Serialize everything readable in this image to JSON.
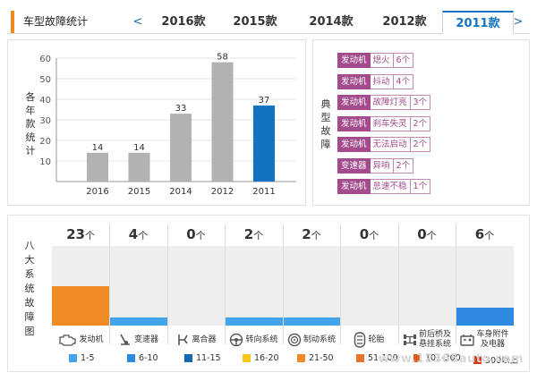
{
  "header": {
    "title": "车型故障统计",
    "prev_arrow": "<",
    "next_arrow": ">",
    "tabs": [
      {
        "label": "2016款",
        "active": false
      },
      {
        "label": "2015款",
        "active": false
      },
      {
        "label": "2014款",
        "active": false
      },
      {
        "label": "2012款",
        "active": false
      },
      {
        "label": "2011款",
        "active": true
      }
    ]
  },
  "chart_panel": {
    "side_label": "各年款统计"
  },
  "chart_data": {
    "type": "bar",
    "categories": [
      "2016",
      "2015",
      "2014",
      "2012",
      "2011"
    ],
    "values": [
      14,
      14,
      33,
      58,
      37
    ],
    "highlight_index": 4,
    "bar_color": "#b2b2b2",
    "highlight_color": "#1273c2",
    "ylim": [
      0,
      60
    ],
    "yticks": [
      10,
      20,
      30,
      40,
      50,
      60
    ],
    "grid": true,
    "title": "",
    "xlabel": "",
    "ylabel": ""
  },
  "faults_panel": {
    "side_label": "典型故障",
    "items": [
      {
        "category": "发动机",
        "desc": "熄火",
        "count": "6个"
      },
      {
        "category": "发动机",
        "desc": "抖动",
        "count": "4个"
      },
      {
        "category": "发动机",
        "desc": "故障灯亮",
        "count": "3个"
      },
      {
        "category": "发动机",
        "desc": "刹车失灵",
        "count": "2个"
      },
      {
        "category": "发动机",
        "desc": "无法启动",
        "count": "2个"
      },
      {
        "category": "变速器",
        "desc": "异响",
        "count": "2个"
      },
      {
        "category": "发动机",
        "desc": "怠速不稳",
        "count": "1个"
      }
    ]
  },
  "systems_panel": {
    "side_label": "八大系统故障图",
    "unit": "个",
    "systems": [
      {
        "name": "发动机",
        "count": 23,
        "icon": "engine-icon",
        "level": 0.49,
        "color": "#f08a24"
      },
      {
        "name": "变速器",
        "count": 4,
        "icon": "gearbox-icon",
        "level": 0.1,
        "color": "#43a4ec"
      },
      {
        "name": "离合器",
        "count": 0,
        "icon": "clutch-icon",
        "level": 0,
        "color": "#43a4ec"
      },
      {
        "name": "转向系统",
        "count": 2,
        "icon": "steering-icon",
        "level": 0.1,
        "color": "#43a4ec"
      },
      {
        "name": "制动系统",
        "count": 2,
        "icon": "brake-icon",
        "level": 0.1,
        "color": "#43a4ec"
      },
      {
        "name": "轮胎",
        "count": 0,
        "icon": "tire-icon",
        "level": 0,
        "color": "#43a4ec"
      },
      {
        "name": "前后桥及悬挂系统",
        "name_line1": "前后桥及",
        "name_line2": "悬挂系统",
        "count": 0,
        "icon": "suspension-icon",
        "level": 0,
        "color": "#43a4ec"
      },
      {
        "name": "车身附件及电器",
        "name_line1": "车身附件",
        "name_line2": "及电器",
        "count": 6,
        "icon": "electrical-icon",
        "level": 0.22,
        "color": "#2e8ae0"
      }
    ]
  },
  "legend": [
    {
      "label": "1-5",
      "color": "#43a4ec"
    },
    {
      "label": "6-10",
      "color": "#2e8ae0"
    },
    {
      "label": "11-15",
      "color": "#1268b3"
    },
    {
      "label": "16-20",
      "color": "#f5c518"
    },
    {
      "label": "21-50",
      "color": "#f08a24"
    },
    {
      "label": "51-100",
      "color": "#e8732a"
    },
    {
      "label": "101-300",
      "color": "#e25a1c"
    },
    {
      "label": "300以上",
      "color": "#d63a1a"
    }
  ],
  "watermark": "www.12365auto.com"
}
